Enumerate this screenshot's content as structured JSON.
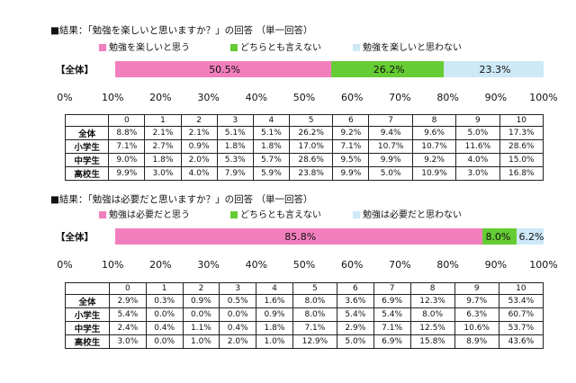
{
  "charts": [
    {
      "title": "■結果：「勉強を楽しいと思いますか？」の回答 （単一回答）",
      "legend": [
        "勉強を楽しいと思う",
        "どちらとも言えない",
        "勉強を楽しいと思わない"
      ],
      "row_label": "【全体】",
      "segments": [
        50.5,
        26.2,
        23.3
      ],
      "segment_labels": [
        "50.5%",
        "26.2%",
        "23.3%"
      ],
      "table_header": [
        "",
        "0",
        "1",
        "2",
        "3",
        "4",
        "5",
        "6",
        "7",
        "8",
        "9",
        "10"
      ],
      "table_rows": [
        [
          "全体",
          "8.8%",
          "2.1%",
          "2.1%",
          "5.1%",
          "5.1%",
          "26.2%",
          "9.2%",
          "9.4%",
          "9.6%",
          "5.0%",
          "17.3%"
        ],
        [
          "小学生",
          "7.1%",
          "2.7%",
          "0.9%",
          "1.8%",
          "1.8%",
          "17.0%",
          "7.1%",
          "10.7%",
          "10.7%",
          "11.6%",
          "28.6%"
        ],
        [
          "中学生",
          "9.0%",
          "1.8%",
          "2.0%",
          "5.3%",
          "5.7%",
          "28.6%",
          "9.5%",
          "9.9%",
          "9.2%",
          "4.0%",
          "15.0%"
        ],
        [
          "高校生",
          "9.9%",
          "3.0%",
          "4.0%",
          "7.9%",
          "5.9%",
          "23.8%",
          "9.9%",
          "5.0%",
          "10.9%",
          "3.0%",
          "16.8%"
        ]
      ]
    },
    {
      "title": "■結果：「勉強は必要だと思いますか？」の回答 （単一回答）",
      "legend": [
        "勉強は必要だと思う",
        "どちらとも言えない",
        "勉強は必要だと思わない"
      ],
      "row_label": "【全体】",
      "segments": [
        85.8,
        8.0,
        6.2
      ],
      "segment_labels": [
        "85.8%",
        "8.0%",
        "6.2%"
      ],
      "table_header": [
        "",
        "0",
        "1",
        "2",
        "3",
        "4",
        "5",
        "6",
        "7",
        "8",
        "9",
        "10"
      ],
      "table_rows": [
        [
          "全体",
          "2.9%",
          "0.3%",
          "0.9%",
          "0.5%",
          "1.6%",
          "8.0%",
          "3.6%",
          "6.9%",
          "12.3%",
          "9.7%",
          "53.4%"
        ],
        [
          "小学生",
          "5.4%",
          "0.0%",
          "0.0%",
          "0.0%",
          "0.9%",
          "8.0%",
          "5.4%",
          "5.4%",
          "8.0%",
          "6.3%",
          "60.7%"
        ],
        [
          "中学生",
          "2.4%",
          "0.4%",
          "1.1%",
          "0.4%",
          "1.8%",
          "7.1%",
          "2.9%",
          "7.1%",
          "12.5%",
          "10.6%",
          "53.7%"
        ],
        [
          "高校生",
          "3.0%",
          "0.0%",
          "1.0%",
          "2.0%",
          "1.0%",
          "12.9%",
          "5.0%",
          "6.9%",
          "15.8%",
          "8.9%",
          "43.6%"
        ]
      ]
    }
  ],
  "axis_ticks": [
    "0%",
    "10%",
    "20%",
    "30%",
    "40%",
    "50%",
    "60%",
    "70%",
    "80%",
    "90%",
    "100%"
  ],
  "colors": [
    "#f27fbd",
    "#66cc33",
    "#cde8f7"
  ],
  "chart_data": [
    {
      "type": "bar",
      "title": "■結果：「勉強を楽しいと思いますか？」の回答 （単一回答）",
      "categories": [
        "【全体】"
      ],
      "series": [
        {
          "name": "勉強を楽しいと思う",
          "values": [
            50.5
          ]
        },
        {
          "name": "どちらとも言えない",
          "values": [
            26.2
          ]
        },
        {
          "name": "勉強を楽しいと思わない",
          "values": [
            23.3
          ]
        }
      ],
      "ylim": [
        0,
        100
      ]
    },
    {
      "type": "table",
      "columns": [
        "0",
        "1",
        "2",
        "3",
        "4",
        "5",
        "6",
        "7",
        "8",
        "9",
        "10"
      ],
      "rows": [
        "全体",
        "小学生",
        "中学生",
        "高校生"
      ]
    },
    {
      "type": "bar",
      "title": "■結果：「勉強は必要だと思いますか？」の回答 （単一回答）",
      "categories": [
        "【全体】"
      ],
      "series": [
        {
          "name": "勉強は必要だと思う",
          "values": [
            85.8
          ]
        },
        {
          "name": "どちらとも言えない",
          "values": [
            8.0
          ]
        },
        {
          "name": "勉強は必要だと思わない",
          "values": [
            6.2
          ]
        }
      ],
      "ylim": [
        0,
        100
      ]
    },
    {
      "type": "table",
      "columns": [
        "0",
        "1",
        "2",
        "3",
        "4",
        "5",
        "6",
        "7",
        "8",
        "9",
        "10"
      ],
      "rows": [
        "全体",
        "小学生",
        "中学生",
        "高校生"
      ]
    }
  ]
}
